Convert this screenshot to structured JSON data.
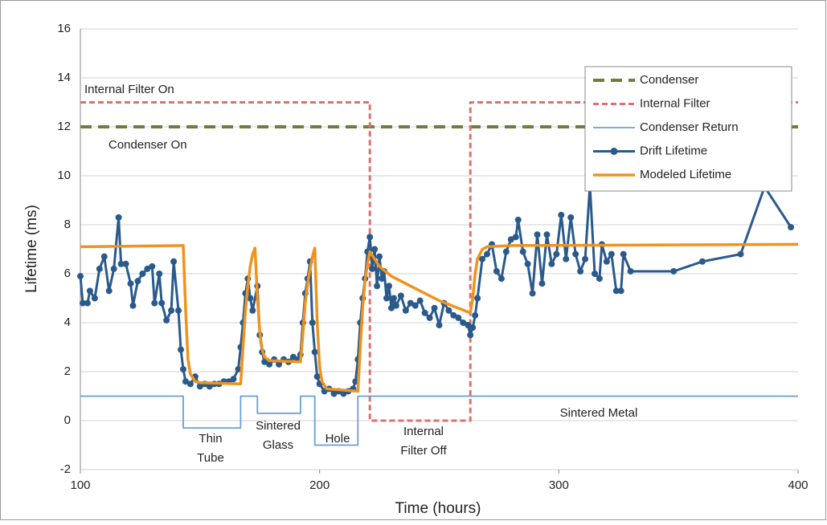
{
  "chart_data": {
    "type": "line",
    "xlabel": "Time (hours)",
    "ylabel": "Lifetime (ms)",
    "xlim": [
      100,
      400
    ],
    "xticks": [
      100,
      200,
      300,
      400
    ],
    "ylim": [
      -2,
      16
    ],
    "yticks": [
      -2,
      0,
      2,
      4,
      6,
      8,
      10,
      12,
      14,
      16
    ],
    "grid": true,
    "legend": "upper right",
    "annotations": [
      [
        "Internal Filter  On"
      ],
      [
        "Condenser  On"
      ],
      [
        "Thin",
        "Tube"
      ],
      [
        "Sintered",
        "Glass"
      ],
      [
        "Hole"
      ],
      [
        "Internal",
        "Filter  Off"
      ],
      [
        "Sintered Metal"
      ]
    ],
    "series": [
      {
        "name": "Condenser",
        "color": "#6b7f3a",
        "style": "dashed",
        "x": [
          100,
          400
        ],
        "values": [
          12,
          12
        ]
      },
      {
        "name": "Internal Filter",
        "color": "#e07070",
        "style": "dotted",
        "x": [
          100,
          221,
          221,
          263,
          263,
          400
        ],
        "values": [
          13,
          13,
          0,
          0,
          13,
          13
        ]
      },
      {
        "name": "Condenser Return",
        "color": "#6a9fd4",
        "style": "thin",
        "x": [
          100,
          143,
          143,
          167,
          167,
          174,
          174,
          192,
          192,
          198,
          198,
          216,
          216,
          400
        ],
        "values": [
          1,
          1,
          -0.3,
          -0.3,
          1,
          1,
          0.3,
          0.3,
          1,
          1,
          -1,
          -1,
          1,
          1
        ]
      },
      {
        "name": "Drift Lifetime",
        "color": "#2a5a8c",
        "style": "marker",
        "x": [
          100,
          101,
          103,
          104,
          106,
          108,
          110,
          112,
          114,
          116,
          117,
          119,
          121,
          122,
          124,
          126,
          128,
          130,
          131,
          133,
          134,
          136,
          138,
          139,
          141,
          142,
          143,
          144,
          146,
          148,
          150,
          152,
          154,
          156,
          158,
          160,
          162,
          164,
          166,
          167,
          168,
          169,
          170,
          171,
          172,
          174,
          175,
          176,
          177,
          179,
          181,
          183,
          185,
          187,
          189,
          191,
          192,
          193,
          194,
          195,
          196,
          197,
          198,
          199,
          200,
          202,
          204,
          206,
          208,
          210,
          212,
          214,
          215,
          216,
          217,
          218,
          219,
          220,
          221,
          222,
          223,
          224,
          225,
          226,
          227,
          228,
          229,
          230,
          231,
          232,
          234,
          236,
          238,
          240,
          242,
          244,
          246,
          248,
          250,
          252,
          254,
          256,
          258,
          260,
          262,
          263,
          264,
          265,
          266,
          268,
          270,
          272,
          274,
          276,
          278,
          280,
          282,
          283,
          285,
          287,
          289,
          291,
          293,
          295,
          297,
          299,
          301,
          303,
          305,
          307,
          309,
          311,
          313,
          315,
          317,
          318,
          320,
          322,
          324,
          326,
          327,
          330,
          348,
          360,
          376,
          386,
          397
        ],
        "values": [
          5.9,
          4.8,
          4.8,
          5.3,
          5.0,
          6.2,
          6.7,
          5.3,
          6.2,
          8.3,
          6.4,
          6.4,
          5.6,
          4.7,
          5.7,
          6.0,
          6.2,
          6.3,
          4.8,
          6.0,
          4.8,
          4.1,
          4.5,
          6.5,
          4.5,
          2.9,
          2.1,
          1.6,
          1.5,
          1.8,
          1.4,
          1.5,
          1.4,
          1.5,
          1.5,
          1.6,
          1.6,
          1.7,
          2.1,
          3.0,
          4.0,
          5.2,
          5.8,
          5.0,
          4.5,
          5.5,
          3.5,
          2.8,
          2.4,
          2.3,
          2.5,
          2.3,
          2.5,
          2.4,
          2.6,
          2.5,
          2.7,
          4.0,
          5.2,
          5.8,
          6.5,
          4.0,
          2.8,
          1.8,
          1.5,
          1.2,
          1.3,
          1.1,
          1.2,
          1.1,
          1.2,
          1.3,
          1.6,
          2.5,
          4.0,
          5.0,
          5.8,
          6.9,
          7.5,
          6.2,
          7.0,
          5.5,
          6.7,
          5.8,
          6.1,
          5.0,
          5.5,
          4.6,
          5.0,
          4.7,
          5.1,
          4.5,
          4.8,
          4.7,
          4.9,
          4.4,
          4.2,
          4.6,
          3.9,
          4.8,
          4.5,
          4.3,
          4.2,
          4.0,
          3.9,
          3.5,
          3.8,
          4.3,
          5.0,
          6.6,
          6.8,
          7.2,
          6.1,
          5.8,
          6.9,
          7.4,
          7.5,
          8.2,
          6.9,
          6.4,
          5.2,
          7.6,
          5.6,
          7.6,
          6.4,
          6.8,
          8.4,
          6.6,
          8.3,
          6.8,
          6.1,
          6.6,
          9.6,
          6.0,
          5.8,
          7.2,
          6.5,
          6.8,
          5.3,
          5.3,
          6.8,
          6.1,
          6.1,
          6.5,
          6.8,
          9.55,
          7.9
        ]
      },
      {
        "name": "Modeled Lifetime",
        "color": "#f0921e",
        "style": "thick",
        "x": [
          100,
          143,
          144,
          145,
          146,
          148,
          150,
          167,
          168,
          169,
          170,
          171,
          172,
          173,
          174,
          175,
          176,
          177,
          179,
          192,
          193,
          194,
          195,
          196,
          197,
          198,
          199,
          200,
          201,
          203,
          216,
          217,
          218,
          219,
          220,
          221,
          225,
          230,
          240,
          250,
          263,
          264,
          265,
          266,
          268,
          270,
          280,
          400
        ],
        "values": [
          7.1,
          7.15,
          4.5,
          2.5,
          1.9,
          1.6,
          1.55,
          1.5,
          3.0,
          4.5,
          5.5,
          6.3,
          6.8,
          7.05,
          5.0,
          3.6,
          2.9,
          2.6,
          2.45,
          2.4,
          3.5,
          4.8,
          5.6,
          6.2,
          6.7,
          7.05,
          4.0,
          2.2,
          1.6,
          1.3,
          1.2,
          3.0,
          4.6,
          5.7,
          6.4,
          6.9,
          6.3,
          5.9,
          5.4,
          4.9,
          4.4,
          5.0,
          6.0,
          6.6,
          7.0,
          7.1,
          7.15,
          7.2
        ]
      }
    ]
  }
}
